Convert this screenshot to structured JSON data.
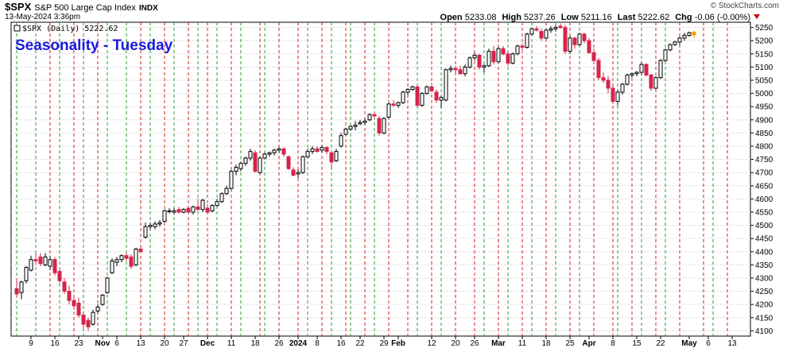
{
  "header": {
    "symbol": "$SPX",
    "description": "S&P 500 Large Cap Index",
    "exchange": "INDX",
    "watermark": "© StockCharts.com",
    "datetime": "13-May-2024 3:36pm",
    "open_label": "Open",
    "open": "5233.08",
    "high_label": "High",
    "high": "5237.26",
    "low_label": "Low",
    "low": "5211.16",
    "last_label": "Last",
    "last": "5222.62",
    "chg_label": "Chg",
    "chg": "-0.06 (-0.00%)"
  },
  "chart_data": {
    "type": "candlestick",
    "title": "Seasonality - Tuesday",
    "legend": "$SPX (Daily) 5222.62",
    "ylim": [
      4080,
      5270
    ],
    "yticks": [
      4100,
      4150,
      4200,
      4250,
      4300,
      4350,
      4400,
      4450,
      4500,
      4550,
      4600,
      4650,
      4700,
      4750,
      4800,
      4850,
      4900,
      4950,
      5000,
      5050,
      5100,
      5150,
      5200,
      5250
    ],
    "xlabels": [
      {
        "t": "9",
        "i": 3
      },
      {
        "t": "16",
        "i": 8
      },
      {
        "t": "23",
        "i": 13
      },
      {
        "t": "Nov",
        "i": 18,
        "bold": true
      },
      {
        "t": "6",
        "i": 21
      },
      {
        "t": "13",
        "i": 26
      },
      {
        "t": "20",
        "i": 31
      },
      {
        "t": "27",
        "i": 35
      },
      {
        "t": "Dec",
        "i": 40,
        "bold": true
      },
      {
        "t": "11",
        "i": 45
      },
      {
        "t": "18",
        "i": 50
      },
      {
        "t": "26",
        "i": 55
      },
      {
        "t": "2024",
        "i": 59,
        "bold": true
      },
      {
        "t": "8",
        "i": 63
      },
      {
        "t": "16",
        "i": 68
      },
      {
        "t": "22",
        "i": 72
      },
      {
        "t": "29",
        "i": 77
      },
      {
        "t": "Feb",
        "i": 80,
        "bold": true
      },
      {
        "t": "12",
        "i": 87
      },
      {
        "t": "20",
        "i": 92
      },
      {
        "t": "26",
        "i": 96
      },
      {
        "t": "Mar",
        "i": 101,
        "bold": true
      },
      {
        "t": "11",
        "i": 106
      },
      {
        "t": "18",
        "i": 111
      },
      {
        "t": "25",
        "i": 116
      },
      {
        "t": "Apr",
        "i": 120,
        "bold": true
      },
      {
        "t": "8",
        "i": 125
      },
      {
        "t": "15",
        "i": 130
      },
      {
        "t": "22",
        "i": 135
      },
      {
        "t": "May",
        "i": 141,
        "bold": true
      },
      {
        "t": "6",
        "i": 145
      },
      {
        "t": "13",
        "i": 150
      }
    ],
    "green_lines": [
      0,
      4,
      9,
      14,
      19,
      23,
      28,
      33,
      38,
      42,
      47,
      52,
      61,
      66,
      70,
      75,
      84,
      89,
      98,
      103,
      108,
      113,
      118,
      126,
      131,
      136,
      146
    ],
    "red_lines": [
      7,
      12,
      17,
      26,
      31,
      36,
      40,
      45,
      51,
      55,
      59,
      64,
      69,
      73,
      78,
      82,
      87,
      92,
      96,
      101,
      106,
      111,
      116,
      121,
      125,
      129,
      134,
      139,
      144,
      149
    ],
    "candles": [
      {
        "o": 4260,
        "h": 4300,
        "l": 4225,
        "c": 4240
      },
      {
        "o": 4245,
        "h": 4290,
        "l": 4220,
        "c": 4285
      },
      {
        "o": 4290,
        "h": 4345,
        "l": 4280,
        "c": 4340
      },
      {
        "o": 4330,
        "h": 4385,
        "l": 4325,
        "c": 4370
      },
      {
        "o": 4370,
        "h": 4395,
        "l": 4350,
        "c": 4365
      },
      {
        "o": 4380,
        "h": 4395,
        "l": 4345,
        "c": 4355
      },
      {
        "o": 4350,
        "h": 4395,
        "l": 4345,
        "c": 4380
      },
      {
        "o": 4345,
        "h": 4385,
        "l": 4330,
        "c": 4370
      },
      {
        "o": 4370,
        "h": 4380,
        "l": 4310,
        "c": 4320
      },
      {
        "o": 4325,
        "h": 4340,
        "l": 4280,
        "c": 4290
      },
      {
        "o": 4285,
        "h": 4300,
        "l": 4240,
        "c": 4250
      },
      {
        "o": 4250,
        "h": 4270,
        "l": 4200,
        "c": 4215
      },
      {
        "o": 4215,
        "h": 4230,
        "l": 4180,
        "c": 4195
      },
      {
        "o": 4205,
        "h": 4225,
        "l": 4150,
        "c": 4160
      },
      {
        "o": 4160,
        "h": 4175,
        "l": 4110,
        "c": 4125
      },
      {
        "o": 4140,
        "h": 4150,
        "l": 4100,
        "c": 4115
      },
      {
        "o": 4125,
        "h": 4180,
        "l": 4120,
        "c": 4170
      },
      {
        "o": 4175,
        "h": 4200,
        "l": 4165,
        "c": 4190
      },
      {
        "o": 4200,
        "h": 4240,
        "l": 4195,
        "c": 4235
      },
      {
        "o": 4245,
        "h": 4305,
        "l": 4240,
        "c": 4300
      },
      {
        "o": 4320,
        "h": 4375,
        "l": 4315,
        "c": 4365
      },
      {
        "o": 4360,
        "h": 4380,
        "l": 4345,
        "c": 4370
      },
      {
        "o": 4370,
        "h": 4390,
        "l": 4360,
        "c": 4385
      },
      {
        "o": 4385,
        "h": 4395,
        "l": 4365,
        "c": 4375
      },
      {
        "o": 4380,
        "h": 4390,
        "l": 4335,
        "c": 4345
      },
      {
        "o": 4350,
        "h": 4415,
        "l": 4345,
        "c": 4410
      },
      {
        "o": 4410,
        "h": 4420,
        "l": 4395,
        "c": 4400
      },
      {
        "o": 4455,
        "h": 4510,
        "l": 4450,
        "c": 4495
      },
      {
        "o": 4495,
        "h": 4510,
        "l": 4485,
        "c": 4500
      },
      {
        "o": 4495,
        "h": 4515,
        "l": 4485,
        "c": 4505
      },
      {
        "o": 4505,
        "h": 4520,
        "l": 4495,
        "c": 4510
      },
      {
        "o": 4515,
        "h": 4560,
        "l": 4510,
        "c": 4555
      },
      {
        "o": 4555,
        "h": 4565,
        "l": 4545,
        "c": 4555
      },
      {
        "o": 4550,
        "h": 4565,
        "l": 4540,
        "c": 4555
      },
      {
        "o": 4560,
        "h": 4570,
        "l": 4545,
        "c": 4550
      },
      {
        "o": 4550,
        "h": 4565,
        "l": 4545,
        "c": 4560
      },
      {
        "o": 4565,
        "h": 4575,
        "l": 4545,
        "c": 4550
      },
      {
        "o": 4550,
        "h": 4575,
        "l": 4540,
        "c": 4570
      },
      {
        "o": 4570,
        "h": 4600,
        "l": 4555,
        "c": 4560
      },
      {
        "o": 4560,
        "h": 4600,
        "l": 4550,
        "c": 4595
      },
      {
        "o": 4565,
        "h": 4580,
        "l": 4545,
        "c": 4550
      },
      {
        "o": 4555,
        "h": 4580,
        "l": 4550,
        "c": 4575
      },
      {
        "o": 4575,
        "h": 4600,
        "l": 4570,
        "c": 4590
      },
      {
        "o": 4590,
        "h": 4625,
        "l": 4585,
        "c": 4620
      },
      {
        "o": 4620,
        "h": 4650,
        "l": 4615,
        "c": 4640
      },
      {
        "o": 4640,
        "h": 4710,
        "l": 4635,
        "c": 4705
      },
      {
        "o": 4705,
        "h": 4730,
        "l": 4690,
        "c": 4720
      },
      {
        "o": 4715,
        "h": 4740,
        "l": 4705,
        "c": 4735
      },
      {
        "o": 4735,
        "h": 4760,
        "l": 4725,
        "c": 4755
      },
      {
        "o": 4755,
        "h": 4790,
        "l": 4745,
        "c": 4780
      },
      {
        "o": 4775,
        "h": 4785,
        "l": 4700,
        "c": 4705
      },
      {
        "o": 4700,
        "h": 4760,
        "l": 4695,
        "c": 4755
      },
      {
        "o": 4755,
        "h": 4775,
        "l": 4750,
        "c": 4770
      },
      {
        "o": 4770,
        "h": 4780,
        "l": 4760,
        "c": 4775
      },
      {
        "o": 4775,
        "h": 4790,
        "l": 4765,
        "c": 4785
      },
      {
        "o": 4785,
        "h": 4795,
        "l": 4775,
        "c": 4790
      },
      {
        "o": 4790,
        "h": 4795,
        "l": 4760,
        "c": 4770
      },
      {
        "o": 4760,
        "h": 4765,
        "l": 4710,
        "c": 4715
      },
      {
        "o": 4710,
        "h": 4720,
        "l": 4685,
        "c": 4690
      },
      {
        "o": 4695,
        "h": 4710,
        "l": 4680,
        "c": 4700
      },
      {
        "o": 4700,
        "h": 4765,
        "l": 4695,
        "c": 4760
      },
      {
        "o": 4760,
        "h": 4790,
        "l": 4755,
        "c": 4780
      },
      {
        "o": 4780,
        "h": 4800,
        "l": 4770,
        "c": 4790
      },
      {
        "o": 4790,
        "h": 4800,
        "l": 4775,
        "c": 4780
      },
      {
        "o": 4785,
        "h": 4805,
        "l": 4775,
        "c": 4795
      },
      {
        "o": 4795,
        "h": 4800,
        "l": 4770,
        "c": 4780
      },
      {
        "o": 4775,
        "h": 4780,
        "l": 4715,
        "c": 4740
      },
      {
        "o": 4745,
        "h": 4790,
        "l": 4740,
        "c": 4780
      },
      {
        "o": 4800,
        "h": 4850,
        "l": 4795,
        "c": 4840
      },
      {
        "o": 4845,
        "h": 4870,
        "l": 4840,
        "c": 4865
      },
      {
        "o": 4865,
        "h": 4880,
        "l": 4860,
        "c": 4875
      },
      {
        "o": 4875,
        "h": 4895,
        "l": 4860,
        "c": 4880
      },
      {
        "o": 4885,
        "h": 4900,
        "l": 4880,
        "c": 4890
      },
      {
        "o": 4890,
        "h": 4905,
        "l": 4880,
        "c": 4895
      },
      {
        "o": 4900,
        "h": 4925,
        "l": 4895,
        "c": 4920
      },
      {
        "o": 4920,
        "h": 4930,
        "l": 4905,
        "c": 4915
      },
      {
        "o": 4905,
        "h": 4915,
        "l": 4840,
        "c": 4850
      },
      {
        "o": 4850,
        "h": 4910,
        "l": 4845,
        "c": 4905
      },
      {
        "o": 4910,
        "h": 4965,
        "l": 4905,
        "c": 4960
      },
      {
        "o": 4960,
        "h": 4975,
        "l": 4950,
        "c": 4955
      },
      {
        "o": 4955,
        "h": 4970,
        "l": 4945,
        "c": 4965
      },
      {
        "o": 4965,
        "h": 5010,
        "l": 4960,
        "c": 5005
      },
      {
        "o": 5005,
        "h": 5020,
        "l": 4995,
        "c": 5015
      },
      {
        "o": 5015,
        "h": 5030,
        "l": 5010,
        "c": 5025
      },
      {
        "o": 5025,
        "h": 5035,
        "l": 4950,
        "c": 4955
      },
      {
        "o": 4955,
        "h": 5005,
        "l": 4950,
        "c": 5000
      },
      {
        "o": 5000,
        "h": 5030,
        "l": 4995,
        "c": 5025
      },
      {
        "o": 5025,
        "h": 5040,
        "l": 5005,
        "c": 5010
      },
      {
        "o": 5005,
        "h": 5015,
        "l": 4965,
        "c": 4975
      },
      {
        "o": 4975,
        "h": 4990,
        "l": 4945,
        "c": 4985
      },
      {
        "o": 4975,
        "h": 5095,
        "l": 4970,
        "c": 5090
      },
      {
        "o": 5090,
        "h": 5105,
        "l": 5080,
        "c": 5095
      },
      {
        "o": 5095,
        "h": 5105,
        "l": 5080,
        "c": 5090
      },
      {
        "o": 5090,
        "h": 5105,
        "l": 5070,
        "c": 5075
      },
      {
        "o": 5075,
        "h": 5110,
        "l": 5065,
        "c": 5100
      },
      {
        "o": 5100,
        "h": 5140,
        "l": 5095,
        "c": 5135
      },
      {
        "o": 5135,
        "h": 5155,
        "l": 5125,
        "c": 5145
      },
      {
        "o": 5145,
        "h": 5150,
        "l": 5090,
        "c": 5100
      },
      {
        "o": 5100,
        "h": 5110,
        "l": 5080,
        "c": 5105
      },
      {
        "o": 5105,
        "h": 5170,
        "l": 5100,
        "c": 5160
      },
      {
        "o": 5160,
        "h": 5180,
        "l": 5110,
        "c": 5120
      },
      {
        "o": 5120,
        "h": 5175,
        "l": 5115,
        "c": 5170
      },
      {
        "o": 5170,
        "h": 5180,
        "l": 5145,
        "c": 5150
      },
      {
        "o": 5150,
        "h": 5160,
        "l": 5105,
        "c": 5115
      },
      {
        "o": 5115,
        "h": 5155,
        "l": 5110,
        "c": 5150
      },
      {
        "o": 5150,
        "h": 5185,
        "l": 5145,
        "c": 5180
      },
      {
        "o": 5180,
        "h": 5190,
        "l": 5165,
        "c": 5175
      },
      {
        "o": 5175,
        "h": 5230,
        "l": 5170,
        "c": 5225
      },
      {
        "o": 5225,
        "h": 5250,
        "l": 5220,
        "c": 5245
      },
      {
        "o": 5245,
        "h": 5255,
        "l": 5235,
        "c": 5240
      },
      {
        "o": 5235,
        "h": 5245,
        "l": 5200,
        "c": 5210
      },
      {
        "o": 5210,
        "h": 5245,
        "l": 5205,
        "c": 5240
      },
      {
        "o": 5240,
        "h": 5255,
        "l": 5230,
        "c": 5245
      },
      {
        "o": 5245,
        "h": 5260,
        "l": 5235,
        "c": 5250
      },
      {
        "o": 5255,
        "h": 5265,
        "l": 5245,
        "c": 5250
      },
      {
        "o": 5250,
        "h": 5260,
        "l": 5150,
        "c": 5160
      },
      {
        "o": 5160,
        "h": 5220,
        "l": 5150,
        "c": 5210
      },
      {
        "o": 5210,
        "h": 5215,
        "l": 5170,
        "c": 5185
      },
      {
        "o": 5185,
        "h": 5230,
        "l": 5180,
        "c": 5225
      },
      {
        "o": 5225,
        "h": 5230,
        "l": 5190,
        "c": 5200
      },
      {
        "o": 5200,
        "h": 5210,
        "l": 5150,
        "c": 5155
      },
      {
        "o": 5155,
        "h": 5170,
        "l": 5110,
        "c": 5125
      },
      {
        "o": 5125,
        "h": 5135,
        "l": 5050,
        "c": 5060
      },
      {
        "o": 5060,
        "h": 5080,
        "l": 5040,
        "c": 5050
      },
      {
        "o": 5050,
        "h": 5065,
        "l": 5000,
        "c": 5020
      },
      {
        "o": 5020,
        "h": 5030,
        "l": 4960,
        "c": 4970
      },
      {
        "o": 4970,
        "h": 5015,
        "l": 4955,
        "c": 5005
      },
      {
        "o": 5005,
        "h": 5040,
        "l": 4995,
        "c": 5035
      },
      {
        "o": 5035,
        "h": 5075,
        "l": 5030,
        "c": 5070
      },
      {
        "o": 5070,
        "h": 5080,
        "l": 5060,
        "c": 5075
      },
      {
        "o": 5075,
        "h": 5085,
        "l": 5065,
        "c": 5080
      },
      {
        "o": 5080,
        "h": 5120,
        "l": 5070,
        "c": 5110
      },
      {
        "o": 5110,
        "h": 5115,
        "l": 5065,
        "c": 5070
      },
      {
        "o": 5070,
        "h": 5075,
        "l": 5010,
        "c": 5020
      },
      {
        "o": 5020,
        "h": 5065,
        "l": 5015,
        "c": 5060
      },
      {
        "o": 5060,
        "h": 5130,
        "l": 5055,
        "c": 5125
      },
      {
        "o": 5125,
        "h": 5170,
        "l": 5120,
        "c": 5165
      },
      {
        "o": 5165,
        "h": 5190,
        "l": 5160,
        "c": 5185
      },
      {
        "o": 5185,
        "h": 5200,
        "l": 5180,
        "c": 5195
      },
      {
        "o": 5195,
        "h": 5215,
        "l": 5185,
        "c": 5210
      },
      {
        "o": 5210,
        "h": 5230,
        "l": 5200,
        "c": 5220
      },
      {
        "o": 5220,
        "h": 5235,
        "l": 5215,
        "c": 5230
      },
      {
        "o": 5233,
        "h": 5237,
        "l": 5211,
        "c": 5222
      }
    ],
    "colors": {
      "up_border": "#000000",
      "up_fill": "#ffffff",
      "down": "#d6234a",
      "green_line": "#2e9e2e",
      "red_line": "#d02020",
      "grid": "#d8d8d8",
      "title": "#1a1adc",
      "last": "#f0a000"
    }
  }
}
